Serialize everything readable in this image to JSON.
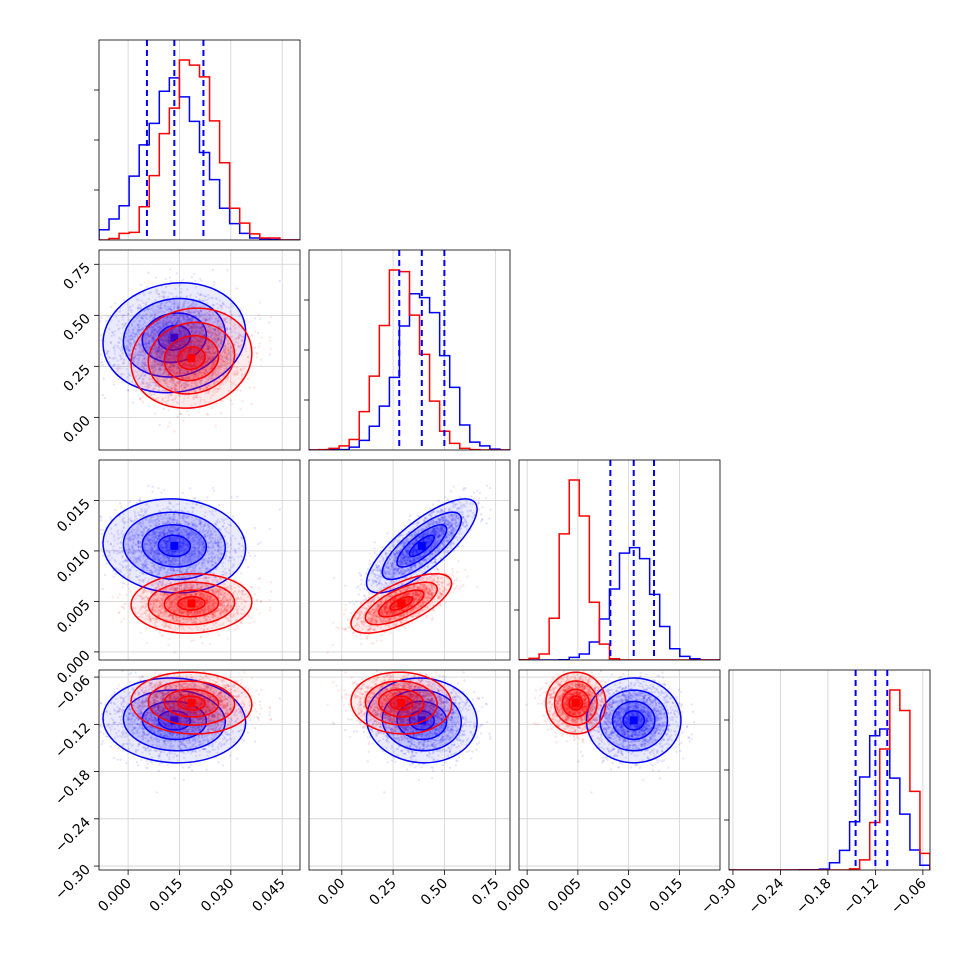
{
  "chart_data": {
    "type": "corner",
    "parameters": [
      {
        "ticks": [
          "0.000",
          "0.015",
          "0.030",
          "0.045"
        ],
        "tick_values": [
          0.0,
          0.015,
          0.03,
          0.045
        ],
        "range": [
          -0.0085,
          0.0502
        ]
      },
      {
        "ticks": [
          "0.00",
          "0.25",
          "0.50",
          "0.75"
        ],
        "tick_values": [
          0.0,
          0.25,
          0.5,
          0.75
        ],
        "range": [
          -0.16,
          0.82
        ]
      },
      {
        "ticks": [
          "0.000",
          "0.005",
          "0.010",
          "0.015"
        ],
        "tick_values": [
          0.0,
          0.005,
          0.01,
          0.015
        ],
        "range": [
          -0.0008,
          0.019
        ]
      },
      {
        "ticks": [
          "−0.30",
          "−0.24",
          "−0.18",
          "−0.12",
          "−0.06"
        ],
        "tick_values": [
          -0.3,
          -0.24,
          -0.18,
          -0.12,
          -0.06
        ],
        "range": [
          -0.305,
          -0.051
        ]
      }
    ],
    "series": [
      {
        "color": "#0000ff",
        "means": [
          0.0135,
          0.39,
          0.0105,
          -0.115
        ],
        "sds": [
          0.0085,
          0.11,
          0.0019,
          0.022
        ],
        "corr": [
          [
            1,
            0.1,
            -0.05,
            -0.05
          ],
          [
            0.1,
            1,
            0.78,
            -0.05
          ],
          [
            -0.05,
            0.78,
            1,
            0.0
          ],
          [
            -0.05,
            -0.05,
            0.0,
            1
          ]
        ],
        "quantiles": {
          "p0": [
            0.0055,
            0.0135,
            0.022
          ],
          "p1": [
            0.28,
            0.39,
            0.5
          ],
          "p2": [
            0.0082,
            0.0105,
            0.0125
          ],
          "p3": [
            -0.145,
            -0.12,
            -0.105
          ]
        }
      },
      {
        "color": "#ff0000",
        "means": [
          0.0185,
          0.29,
          0.0048,
          -0.093
        ],
        "sds": [
          0.0072,
          0.1,
          0.0012,
          0.016
        ],
        "corr": [
          [
            1,
            0.1,
            0.05,
            -0.05
          ],
          [
            0.1,
            1,
            0.68,
            -0.05
          ],
          [
            0.05,
            0.68,
            1,
            0.0
          ],
          [
            -0.05,
            -0.05,
            0.0,
            1
          ]
        ]
      }
    ],
    "quantile_color": "#0000ff",
    "grid": true,
    "legend": "none"
  }
}
